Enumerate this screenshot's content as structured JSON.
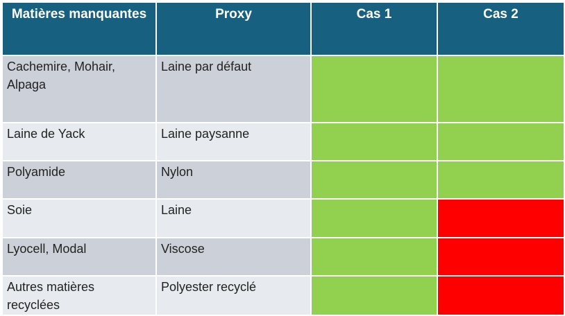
{
  "table": {
    "headers": [
      "Matières manquantes",
      "Proxy",
      "Cas 1",
      "Cas 2"
    ],
    "rows": [
      {
        "material": "Cachemire, Mohair, Alpaga",
        "proxy": "Laine par défaut",
        "cas1": "green",
        "cas2": "green"
      },
      {
        "material": "Laine de Yack",
        "proxy": "Laine paysanne",
        "cas1": "green",
        "cas2": "green"
      },
      {
        "material": "Polyamide",
        "proxy": "Nylon",
        "cas1": "green",
        "cas2": "green"
      },
      {
        "material": "Soie",
        "proxy": "Laine",
        "cas1": "green",
        "cas2": "red"
      },
      {
        "material": "Lyocell, Modal",
        "proxy": "Viscose",
        "cas1": "green",
        "cas2": "red"
      },
      {
        "material": "Autres matières recyclées",
        "proxy": "Polyester recyclé",
        "cas1": "green",
        "cas2": "red"
      }
    ]
  },
  "colors": {
    "header": "#17607f",
    "row_odd": "#ccd0d8",
    "row_even": "#e7eaee",
    "green": "#92d050",
    "red": "#ff0000"
  }
}
